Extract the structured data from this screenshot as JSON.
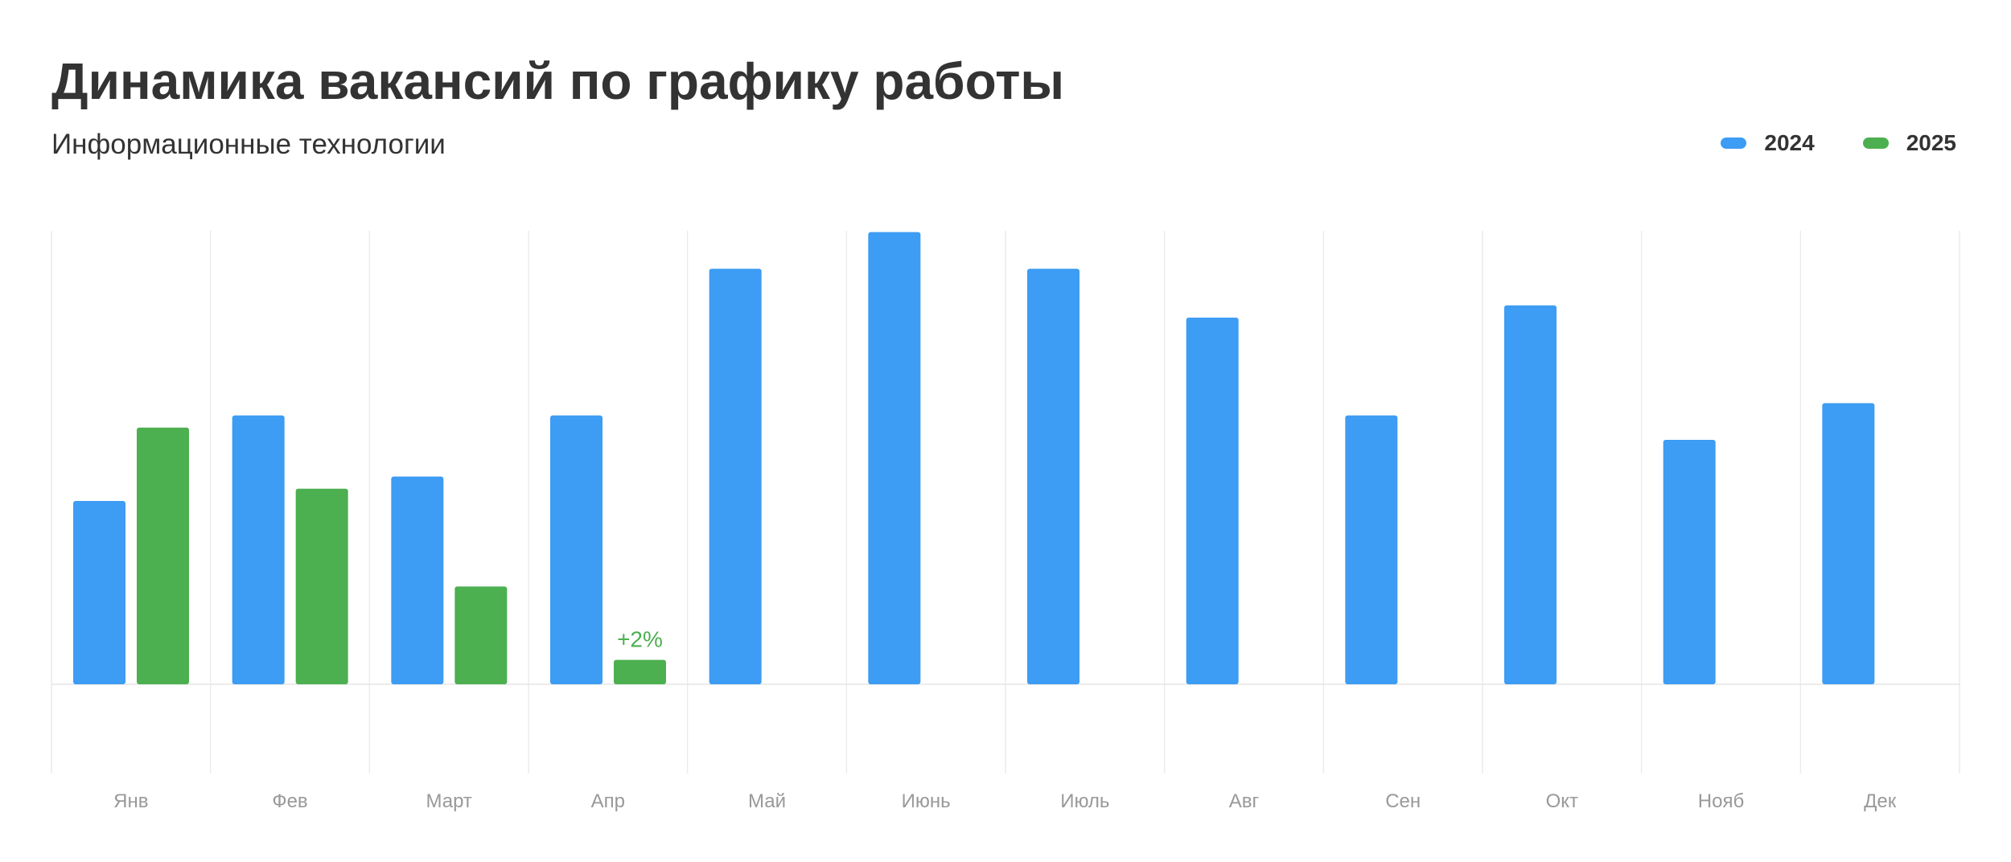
{
  "chart_data": {
    "type": "bar",
    "title": "Динамика вакансий по графику работы",
    "subtitle": "Информационные технологии",
    "categories": [
      "Янв",
      "Фев",
      "Март",
      "Апр",
      "Май",
      "Июнь",
      "Июль",
      "Авг",
      "Сен",
      "Окт",
      "Нояб",
      "Дек"
    ],
    "series": [
      {
        "name": "2024",
        "color": "#3d9cf3",
        "values": [
          150,
          220,
          170,
          220,
          340,
          370,
          340,
          300,
          220,
          310,
          200,
          230
        ]
      },
      {
        "name": "2025",
        "color": "#4caf50",
        "values": [
          210,
          160,
          80,
          20,
          null,
          null,
          null,
          null,
          null,
          null,
          null,
          null
        ]
      }
    ],
    "annotations": [
      {
        "series": "2025",
        "category": "Апр",
        "text": "+2%"
      }
    ],
    "ylim": [
      -100,
      500
    ],
    "grid": {
      "vertical": true,
      "horizontal": false
    },
    "legend_position": "top-right"
  }
}
